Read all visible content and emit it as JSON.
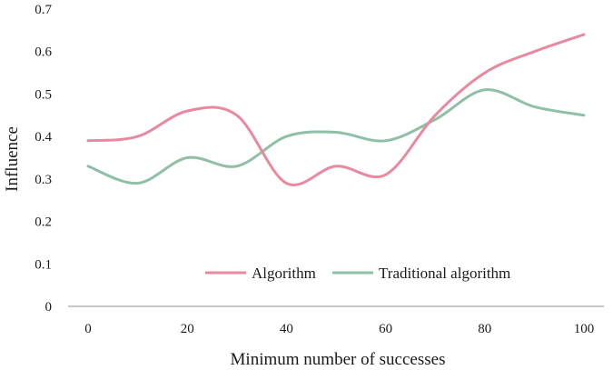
{
  "chart_data": {
    "type": "line",
    "xlabel": "Minimum number of successes",
    "ylabel": "Influence",
    "x": [
      0,
      10,
      20,
      30,
      40,
      50,
      60,
      70,
      80,
      90,
      100
    ],
    "xticks": [
      "0",
      "20",
      "40",
      "60",
      "80",
      "100"
    ],
    "yticks": [
      "0",
      "0.1",
      "0.2",
      "0.3",
      "0.4",
      "0.5",
      "0.6",
      "0.7"
    ],
    "xlim": [
      0,
      100
    ],
    "ylim": [
      0,
      0.7
    ],
    "grid": false,
    "legend_position": "bottom-right",
    "series": [
      {
        "name": "Algorithm",
        "color": "#e8899f",
        "values": [
          0.39,
          0.4,
          0.46,
          0.45,
          0.29,
          0.33,
          0.31,
          0.45,
          0.55,
          0.6,
          0.64
        ]
      },
      {
        "name": "Traditional algorithm",
        "color": "#8fbfa5",
        "values": [
          0.33,
          0.29,
          0.35,
          0.33,
          0.4,
          0.41,
          0.39,
          0.44,
          0.51,
          0.47,
          0.45
        ]
      }
    ]
  }
}
